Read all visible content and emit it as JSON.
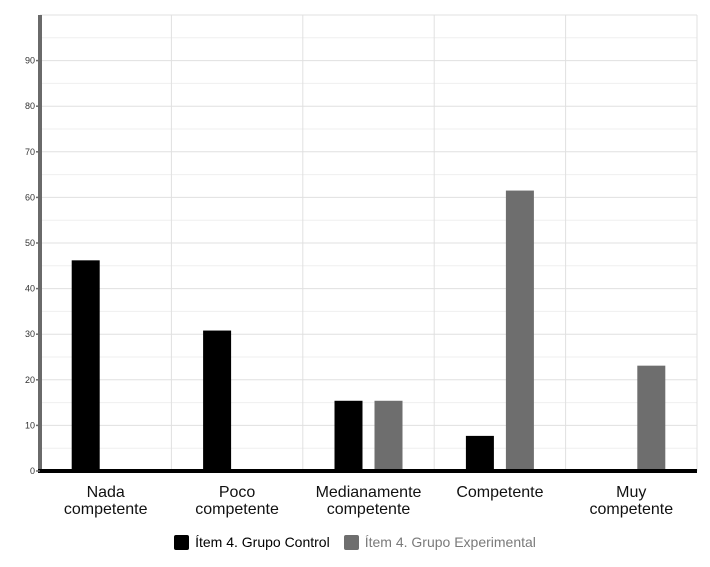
{
  "chart_data": {
    "type": "bar",
    "title": "",
    "xlabel": "",
    "ylabel": "",
    "ylim": [
      0,
      100
    ],
    "yticks": [
      0,
      10,
      20,
      30,
      40,
      50,
      60,
      70,
      80,
      90
    ],
    "grid": true,
    "legend_position": "bottom",
    "categories": [
      [
        "Nada",
        "competente"
      ],
      [
        "Poco",
        "competente"
      ],
      [
        "Medianamente",
        "competente"
      ],
      [
        "Competente"
      ],
      [
        "Muy",
        "competente"
      ]
    ],
    "series": [
      {
        "name": "Ítem 4. Grupo Control",
        "color": "#000000",
        "values": [
          46.2,
          30.8,
          15.4,
          7.7,
          0
        ]
      },
      {
        "name": "Ítem 4. Grupo Experimental",
        "color": "#6e6e6e",
        "values": [
          0,
          0,
          15.4,
          61.5,
          23.1
        ]
      }
    ]
  }
}
